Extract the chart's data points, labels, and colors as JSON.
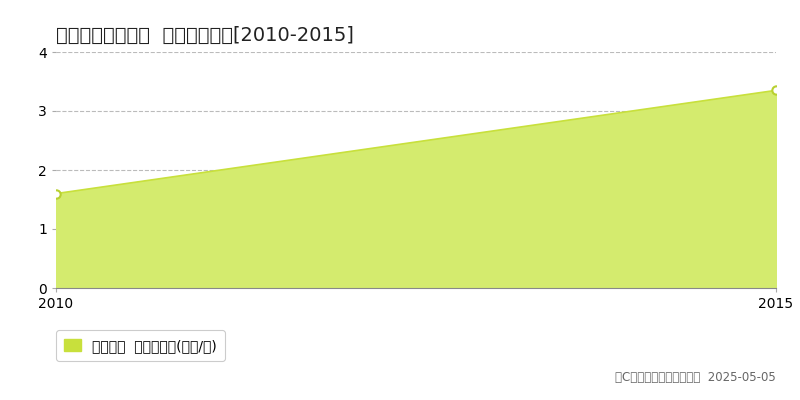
{
  "title": "紫波郡紫波町土舘  土地価格推移[2010-2015]",
  "x_values": [
    2010,
    2015
  ],
  "y_values": [
    1.6,
    3.35
  ],
  "xlim": [
    2010,
    2015
  ],
  "ylim": [
    0,
    4
  ],
  "yticks": [
    0,
    1,
    2,
    3,
    4
  ],
  "xticks": [
    2010,
    2015
  ],
  "line_color": "#c8e03c",
  "fill_color": "#d4eb6e",
  "marker_color": "#ffffff",
  "marker_edge_color": "#b8d030",
  "grid_color": "#bbbbbb",
  "background_color": "#ffffff",
  "legend_label": "土地価格  平均坪単価(万円/坪)",
  "legend_marker_color": "#c8e03c",
  "copyright_text": "（C）土地価格ドットコム  2025-05-05",
  "title_fontsize": 14,
  "axis_fontsize": 10,
  "legend_fontsize": 10,
  "copyright_fontsize": 8.5
}
